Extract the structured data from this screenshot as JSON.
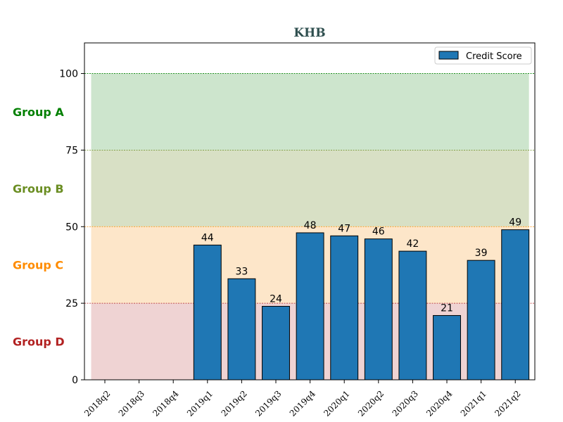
{
  "chart_data": {
    "type": "bar",
    "title": "KHB",
    "categories": [
      "2018q2",
      "2018q3",
      "2018q4",
      "2019q1",
      "2019q2",
      "2019q3",
      "2019q4",
      "2020q1",
      "2020q2",
      "2020q3",
      "2020q4",
      "2021q1",
      "2021q2"
    ],
    "series": [
      {
        "name": "Credit Score",
        "values": [
          null,
          null,
          null,
          44,
          33,
          24,
          48,
          47,
          46,
          42,
          21,
          39,
          49
        ],
        "color": "#1f77b4"
      }
    ],
    "ylim": [
      0,
      110
    ],
    "yticks": [
      0,
      25,
      50,
      75,
      100
    ],
    "legend_position": "top-right",
    "grid": false,
    "bands": [
      {
        "label": "Group A",
        "range": [
          75,
          100
        ],
        "color": "#008000",
        "fill": "#cde5cd",
        "line_color": "#008000"
      },
      {
        "label": "Group B",
        "range": [
          50,
          75
        ],
        "color": "#6b8e23",
        "fill": "#d8e0c5",
        "line_color": "#6b8e23"
      },
      {
        "label": "Group C",
        "range": [
          25,
          50
        ],
        "color": "#ff8c00",
        "fill": "#fde6c9",
        "line_color": "#ff8c00"
      },
      {
        "label": "Group D",
        "range": [
          0,
          25
        ],
        "color": "#b22222",
        "fill": "#efd3d3",
        "line_color": "#b22222"
      }
    ]
  }
}
